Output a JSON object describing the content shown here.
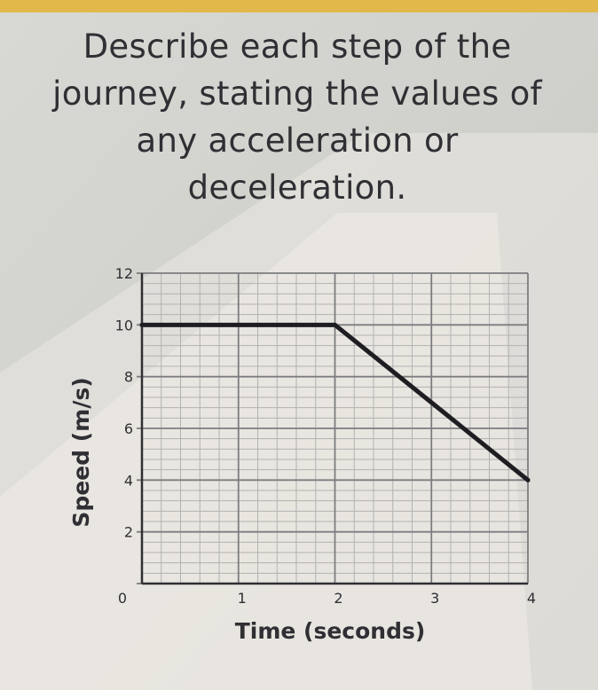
{
  "question": {
    "lines": [
      "Describe each step of the",
      "journey, stating the values of",
      "any acceleration or",
      "deceleration."
    ]
  },
  "chart_data": {
    "type": "line",
    "title": "",
    "xlabel": "Time (seconds)",
    "ylabel": "Speed (m/s)",
    "xlim": [
      0,
      4
    ],
    "ylim": [
      0,
      12
    ],
    "x_ticks": [
      0,
      1,
      2,
      3,
      4
    ],
    "y_ticks": [
      0,
      2,
      4,
      6,
      8,
      10,
      12
    ],
    "x_tick_labels": [
      "0",
      "1",
      "2",
      "3",
      "4"
    ],
    "y_tick_labels": [
      "2",
      "4",
      "6",
      "8",
      "10",
      "12"
    ],
    "minor_gridlines_per_major": 4,
    "grid": true,
    "series": [
      {
        "x": [
          0,
          2,
          4
        ],
        "y": [
          10,
          10,
          4
        ]
      }
    ],
    "colors": {
      "line": "#1e1e22",
      "grid": "#7d7d80",
      "minor_grid": "#b2b2b2",
      "text": "#2f2f34"
    }
  }
}
